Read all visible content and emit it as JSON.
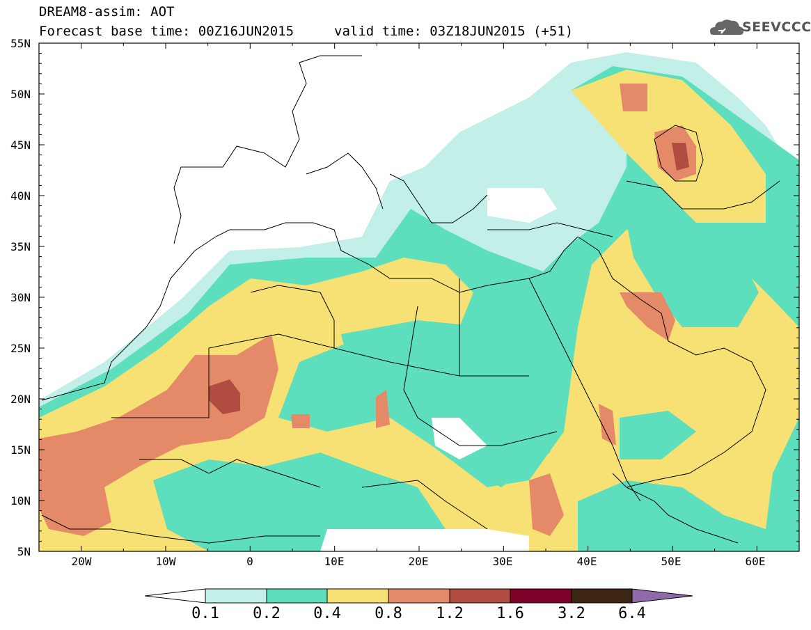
{
  "header": {
    "title": "DREAM8-assim: AOT",
    "base_time": "Forecast base time: 00Z16JUN2015",
    "valid_time": "valid time: 03Z18JUN2015 (+51)",
    "logo_text": "SEEVCCC"
  },
  "map": {
    "lat_labels": [
      "55N",
      "50N",
      "45N",
      "40N",
      "35N",
      "30N",
      "25N",
      "20N",
      "15N",
      "10N",
      "5N"
    ],
    "lon_labels": [
      "20W",
      "10W",
      "0",
      "10E",
      "20E",
      "30E",
      "40E",
      "50E",
      "60E"
    ],
    "lon_range": [
      -25,
      65
    ],
    "lat_range": [
      5,
      55
    ]
  },
  "colorbar": {
    "labels": [
      "0.1",
      "0.2",
      "0.4",
      "0.8",
      "1.2",
      "1.6",
      "3.2",
      "6.4"
    ],
    "colors": [
      "#ffffff",
      "#c2efe8",
      "#5ddfbd",
      "#f7e174",
      "#e58a68",
      "#b04c40",
      "#7d0028",
      "#3d2514",
      "#8e6aa9"
    ]
  }
}
